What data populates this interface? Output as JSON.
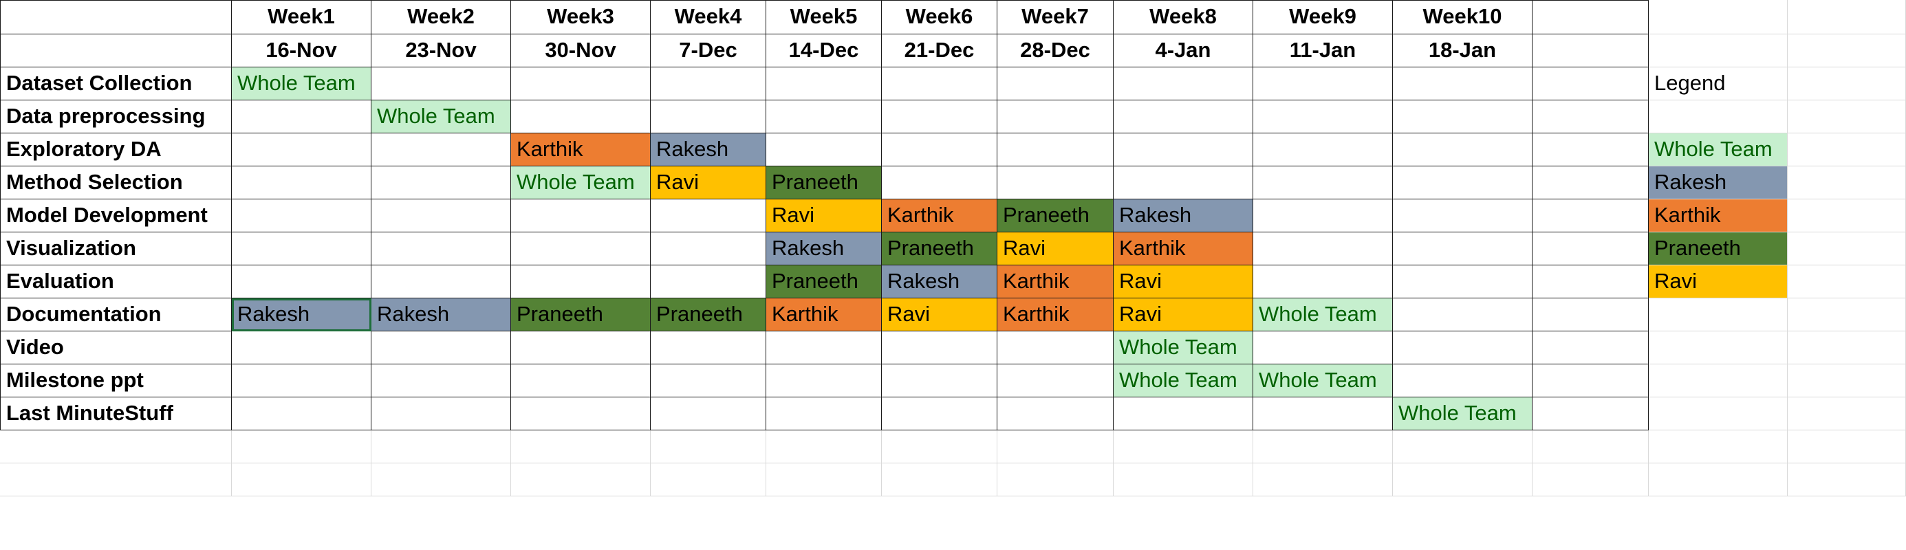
{
  "weeks": [
    "Week1",
    "Week2",
    "Week3",
    "Week4",
    "Week5",
    "Week6",
    "Week7",
    "Week8",
    "Week9",
    "Week10"
  ],
  "dates": [
    "16-Nov",
    "23-Nov",
    "30-Nov",
    "7-Dec",
    "14-Dec",
    "21-Dec",
    "28-Dec",
    "4-Jan",
    "11-Jan",
    "18-Jan"
  ],
  "colors": {
    "whole": "#c6efce",
    "whole_text": "#006100",
    "rakesh": "#8497b0",
    "karthik": "#ed7d31",
    "praneeth": "#548235",
    "ravi": "#ffc000"
  },
  "tasks": [
    {
      "name": "Dataset Collection",
      "cells": [
        "Whole Team",
        "",
        "",
        "",
        "",
        "",
        "",
        "",
        "",
        ""
      ]
    },
    {
      "name": "Data preprocessing",
      "cells": [
        "",
        "Whole Team",
        "",
        "",
        "",
        "",
        "",
        "",
        "",
        ""
      ]
    },
    {
      "name": "Exploratory DA",
      "cells": [
        "",
        "",
        "Karthik",
        "Rakesh",
        "",
        "",
        "",
        "",
        "",
        ""
      ]
    },
    {
      "name": "Method Selection",
      "cells": [
        "",
        "",
        "Whole Team",
        "Ravi",
        "Praneeth",
        "",
        "",
        "",
        "",
        ""
      ]
    },
    {
      "name": "Model Development",
      "cells": [
        "",
        "",
        "",
        "",
        "Ravi",
        "Karthik",
        "Praneeth",
        "Rakesh",
        "",
        ""
      ]
    },
    {
      "name": "Visualization",
      "cells": [
        "",
        "",
        "",
        "",
        "Rakesh",
        "Praneeth",
        "Ravi",
        "Karthik",
        "",
        ""
      ]
    },
    {
      "name": "Evaluation",
      "cells": [
        "",
        "",
        "",
        "",
        "Praneeth",
        "Rakesh",
        "Karthik",
        "Ravi",
        "",
        ""
      ]
    },
    {
      "name": "Documentation",
      "cells": [
        "Rakesh",
        "Rakesh",
        "Praneeth",
        "Praneeth",
        "Karthik",
        "Ravi",
        "Karthik",
        "Ravi",
        "Whole Team",
        ""
      ]
    },
    {
      "name": "Video",
      "cells": [
        "",
        "",
        "",
        "",
        "",
        "",
        "",
        "Whole Team",
        "",
        ""
      ]
    },
    {
      "name": "Milestone ppt",
      "cells": [
        "",
        "",
        "",
        "",
        "",
        "",
        "",
        "Whole Team",
        "Whole Team",
        ""
      ]
    },
    {
      "name": "Last MinuteStuff",
      "cells": [
        "",
        "",
        "",
        "",
        "",
        "",
        "",
        "",
        "",
        "Whole Team"
      ]
    }
  ],
  "legend": {
    "title": "Legend",
    "items": [
      "Whole Team",
      "Rakesh",
      "Karthik",
      "Praneeth",
      "Ravi"
    ]
  },
  "selected_cell": "Documentation-Week1"
}
